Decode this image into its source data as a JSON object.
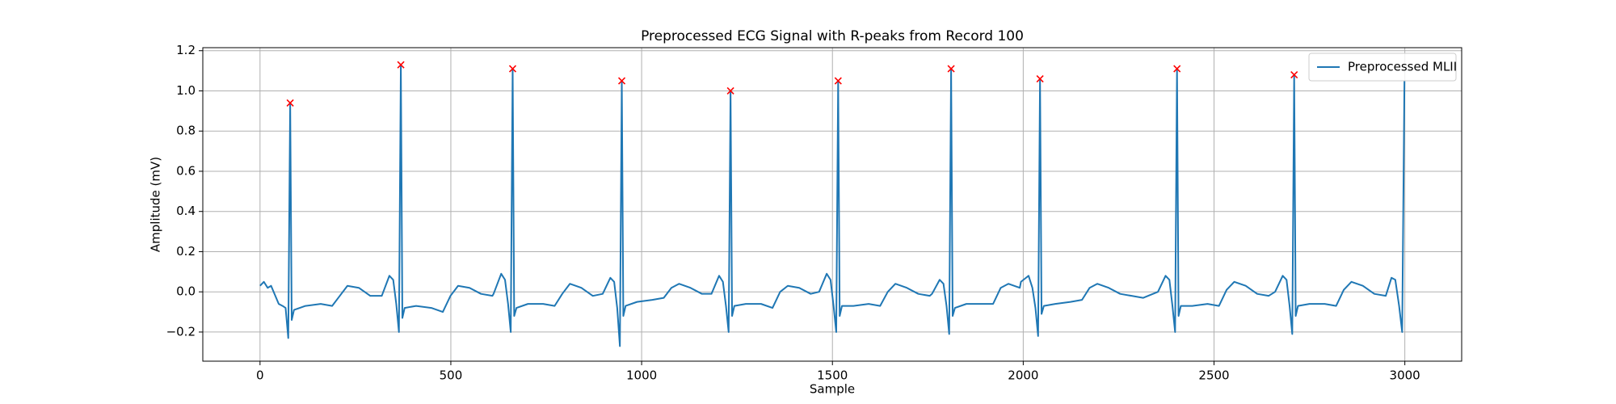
{
  "chart_data": {
    "type": "line",
    "title": "Preprocessed ECG Signal with R-peaks from Record 100",
    "xlabel": "Sample",
    "ylabel": "Amplitude (mV)",
    "xlim": [
      -149.95,
      3148.95
    ],
    "ylim": [
      -0.345,
      1.215
    ],
    "xticks": [
      0,
      500,
      1000,
      1500,
      2000,
      2500,
      3000
    ],
    "yticks": [
      {
        "value": -0.2,
        "label": "−0.2"
      },
      {
        "value": 0,
        "label": "0.0"
      },
      0.2,
      0.4,
      0.6,
      0.8,
      {
        "value": 1,
        "label": "1.0"
      },
      1.2
    ],
    "grid": true,
    "legend": "upper right",
    "series": [
      {
        "name": "Preprocessed MLII",
        "color": "#1f77b4",
        "style": "line",
        "x": [
          0,
          10,
          20,
          29,
          49,
          59,
          67,
          74,
          79,
          83,
          89,
          119,
          159,
          189,
          209,
          229,
          259,
          289,
          319,
          339,
          349,
          357,
          364,
          369,
          373,
          379,
          409,
          449,
          479,
          499,
          519,
          549,
          579,
          609,
          612,
          632,
          642,
          650,
          657,
          662,
          666,
          672,
          702,
          742,
          772,
          792,
          812,
          842,
          872,
          898,
          918,
          928,
          936,
          943,
          948,
          952,
          958,
          988,
          1028,
          1058,
          1078,
          1098,
          1128,
          1158,
          1183,
          1203,
          1213,
          1221,
          1228,
          1233,
          1237,
          1243,
          1273,
          1313,
          1343,
          1363,
          1383,
          1413,
          1443,
          1465,
          1485,
          1495,
          1503,
          1510,
          1515,
          1519,
          1525,
          1555,
          1595,
          1625,
          1645,
          1665,
          1695,
          1725,
          1755,
          1761,
          1781,
          1791,
          1799,
          1806,
          1811,
          1815,
          1821,
          1851,
          1891,
          1921,
          1941,
          1961,
          1991,
          1994,
          2014,
          2024,
          2032,
          2039,
          2044,
          2048,
          2054,
          2084,
          2124,
          2154,
          2174,
          2194,
          2224,
          2254,
          2284,
          2314,
          2353,
          2373,
          2383,
          2391,
          2398,
          2403,
          2407,
          2413,
          2443,
          2483,
          2513,
          2533,
          2553,
          2583,
          2613,
          2643,
          2660,
          2680,
          2690,
          2698,
          2705,
          2710,
          2714,
          2720,
          2750,
          2790,
          2820,
          2840,
          2860,
          2890,
          2920,
          2950,
          2965,
          2975,
          2985,
          2993,
          2999
        ],
        "values": [
          0.03,
          0.05,
          0.02,
          0.03,
          -0.06,
          -0.07,
          -0.08,
          -0.23,
          0.94,
          -0.14,
          -0.09,
          -0.07,
          -0.06,
          -0.07,
          -0.02,
          0.03,
          0.02,
          -0.02,
          -0.02,
          0.08,
          0.06,
          -0.06,
          -0.2,
          1.13,
          -0.13,
          -0.08,
          -0.07,
          -0.08,
          -0.1,
          -0.02,
          0.03,
          0.02,
          -0.01,
          -0.02,
          -0.01,
          0.09,
          0.06,
          -0.06,
          -0.2,
          1.11,
          -0.12,
          -0.08,
          -0.06,
          -0.06,
          -0.07,
          -0.01,
          0.04,
          0.02,
          -0.02,
          -0.01,
          0.07,
          0.05,
          -0.08,
          -0.27,
          1.05,
          -0.12,
          -0.07,
          -0.05,
          -0.04,
          -0.03,
          0.02,
          0.04,
          0.02,
          -0.01,
          -0.01,
          0.08,
          0.05,
          -0.07,
          -0.2,
          1.0,
          -0.12,
          -0.07,
          -0.06,
          -0.06,
          -0.08,
          0.0,
          0.03,
          0.02,
          -0.01,
          0.0,
          0.09,
          0.06,
          -0.07,
          -0.2,
          1.05,
          -0.12,
          -0.07,
          -0.07,
          -0.06,
          -0.07,
          0.0,
          0.04,
          0.02,
          -0.01,
          -0.02,
          -0.01,
          0.06,
          0.04,
          -0.07,
          -0.21,
          1.11,
          -0.12,
          -0.08,
          -0.06,
          -0.06,
          -0.06,
          0.02,
          0.04,
          0.02,
          0.05,
          0.08,
          0.02,
          -0.08,
          -0.22,
          1.06,
          -0.11,
          -0.07,
          -0.06,
          -0.05,
          -0.04,
          0.02,
          0.04,
          0.02,
          -0.01,
          -0.02,
          -0.03,
          0.0,
          0.08,
          0.06,
          -0.07,
          -0.2,
          1.11,
          -0.12,
          -0.07,
          -0.07,
          -0.06,
          -0.07,
          0.01,
          0.05,
          0.03,
          -0.01,
          -0.02,
          0.0,
          0.08,
          0.06,
          -0.07,
          -0.21,
          1.08,
          -0.12,
          -0.07,
          -0.06,
          -0.06,
          -0.07,
          0.01,
          0.05,
          0.03,
          -0.01,
          -0.02,
          0.07,
          0.06,
          -0.07,
          -0.2,
          1.05
        ]
      },
      {
        "color": "#ff0000",
        "style": "x",
        "x": [
          79,
          369,
          662,
          948,
          1233,
          1515,
          1811,
          2044,
          2403,
          2710
        ],
        "values": [
          0.94,
          1.13,
          1.11,
          1.05,
          1.0,
          1.05,
          1.11,
          1.06,
          1.11,
          1.08
        ]
      }
    ]
  }
}
